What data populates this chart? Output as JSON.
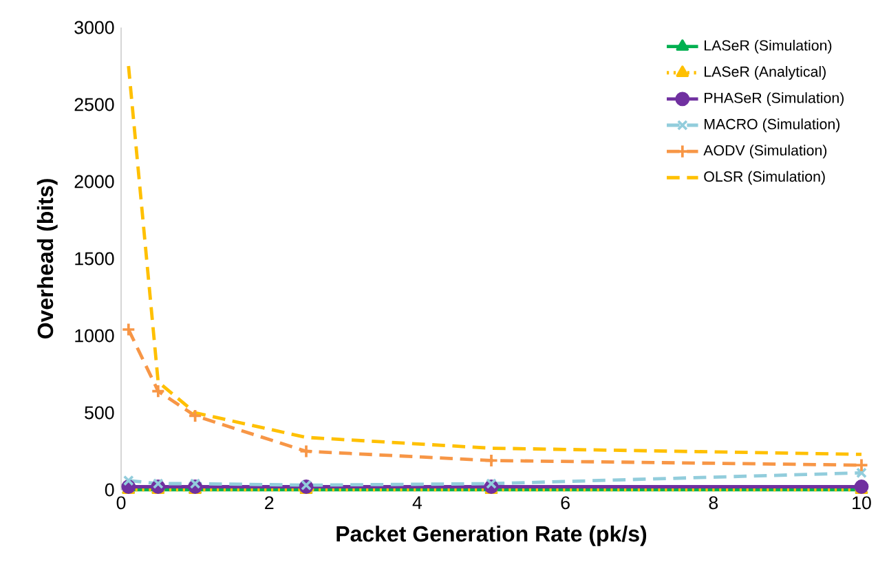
{
  "chart_data": {
    "type": "line",
    "xlabel": "Packet Generation Rate (pk/s)",
    "ylabel": "Overhead (bits)",
    "x": [
      0.1,
      0.5,
      1,
      2.5,
      5,
      10
    ],
    "xlim": [
      0,
      10
    ],
    "xticks": [
      0,
      2,
      4,
      6,
      8,
      10
    ],
    "ylim": [
      0,
      3000
    ],
    "yticks": [
      0,
      500,
      1000,
      1500,
      2000,
      2500,
      3000
    ],
    "grid": false,
    "legend": "top right",
    "series": [
      {
        "name": "LASeR (Simulation)",
        "color": "#00b050",
        "marker": "triangle",
        "line_style": "solid",
        "values": [
          0,
          0,
          0,
          0,
          0,
          0
        ]
      },
      {
        "name": "LASeR (Analytical)",
        "color": "#ffc000",
        "marker": "triangle",
        "line_style": "dotted",
        "values": [
          0,
          0,
          0,
          0,
          0,
          0
        ]
      },
      {
        "name": "PHASeR (Simulation)",
        "color": "#7030a0",
        "marker": "circle",
        "line_style": "solid",
        "values": [
          20,
          20,
          20,
          20,
          20,
          20
        ]
      },
      {
        "name": "MACRO (Simulation)",
        "color": "#92cddc",
        "marker": "cross",
        "line_style": "dashed",
        "values": [
          60,
          40,
          40,
          30,
          40,
          110
        ]
      },
      {
        "name": "AODV (Simulation)",
        "color": "#f79646",
        "marker": "plus",
        "line_style": "dashed",
        "values": [
          1040,
          640,
          480,
          250,
          190,
          160
        ]
      },
      {
        "name": "OLSR (Simulation)",
        "color": "#ffc000",
        "marker": "none",
        "line_style": "dashed",
        "values": [
          2750,
          700,
          500,
          340,
          270,
          230
        ]
      }
    ]
  }
}
